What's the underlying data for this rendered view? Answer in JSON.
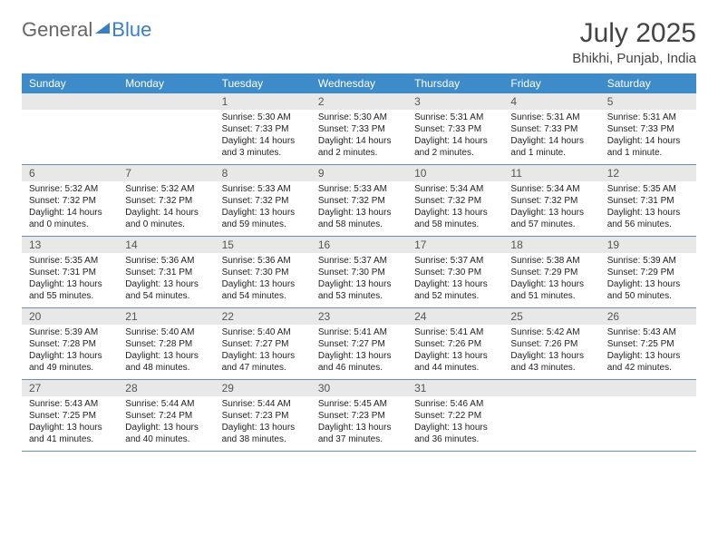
{
  "logo": {
    "general": "General",
    "blue": "Blue"
  },
  "title": "July 2025",
  "location": "Bhikhi, Punjab, India",
  "colors": {
    "header_bg": "#3d8bc9",
    "header_text": "#ffffff",
    "daynum_bg": "#e8e8e8",
    "daynum_text": "#555555",
    "body_text": "#222222",
    "rule": "#6a8db0",
    "logo_blue": "#3a7fc4"
  },
  "weekdays": [
    "Sunday",
    "Monday",
    "Tuesday",
    "Wednesday",
    "Thursday",
    "Friday",
    "Saturday"
  ],
  "weeks": [
    [
      null,
      null,
      {
        "n": "1",
        "sr": "5:30 AM",
        "ss": "7:33 PM",
        "dl": "14 hours and 3 minutes."
      },
      {
        "n": "2",
        "sr": "5:30 AM",
        "ss": "7:33 PM",
        "dl": "14 hours and 2 minutes."
      },
      {
        "n": "3",
        "sr": "5:31 AM",
        "ss": "7:33 PM",
        "dl": "14 hours and 2 minutes."
      },
      {
        "n": "4",
        "sr": "5:31 AM",
        "ss": "7:33 PM",
        "dl": "14 hours and 1 minute."
      },
      {
        "n": "5",
        "sr": "5:31 AM",
        "ss": "7:33 PM",
        "dl": "14 hours and 1 minute."
      }
    ],
    [
      {
        "n": "6",
        "sr": "5:32 AM",
        "ss": "7:32 PM",
        "dl": "14 hours and 0 minutes."
      },
      {
        "n": "7",
        "sr": "5:32 AM",
        "ss": "7:32 PM",
        "dl": "14 hours and 0 minutes."
      },
      {
        "n": "8",
        "sr": "5:33 AM",
        "ss": "7:32 PM",
        "dl": "13 hours and 59 minutes."
      },
      {
        "n": "9",
        "sr": "5:33 AM",
        "ss": "7:32 PM",
        "dl": "13 hours and 58 minutes."
      },
      {
        "n": "10",
        "sr": "5:34 AM",
        "ss": "7:32 PM",
        "dl": "13 hours and 58 minutes."
      },
      {
        "n": "11",
        "sr": "5:34 AM",
        "ss": "7:32 PM",
        "dl": "13 hours and 57 minutes."
      },
      {
        "n": "12",
        "sr": "5:35 AM",
        "ss": "7:31 PM",
        "dl": "13 hours and 56 minutes."
      }
    ],
    [
      {
        "n": "13",
        "sr": "5:35 AM",
        "ss": "7:31 PM",
        "dl": "13 hours and 55 minutes."
      },
      {
        "n": "14",
        "sr": "5:36 AM",
        "ss": "7:31 PM",
        "dl": "13 hours and 54 minutes."
      },
      {
        "n": "15",
        "sr": "5:36 AM",
        "ss": "7:30 PM",
        "dl": "13 hours and 54 minutes."
      },
      {
        "n": "16",
        "sr": "5:37 AM",
        "ss": "7:30 PM",
        "dl": "13 hours and 53 minutes."
      },
      {
        "n": "17",
        "sr": "5:37 AM",
        "ss": "7:30 PM",
        "dl": "13 hours and 52 minutes."
      },
      {
        "n": "18",
        "sr": "5:38 AM",
        "ss": "7:29 PM",
        "dl": "13 hours and 51 minutes."
      },
      {
        "n": "19",
        "sr": "5:39 AM",
        "ss": "7:29 PM",
        "dl": "13 hours and 50 minutes."
      }
    ],
    [
      {
        "n": "20",
        "sr": "5:39 AM",
        "ss": "7:28 PM",
        "dl": "13 hours and 49 minutes."
      },
      {
        "n": "21",
        "sr": "5:40 AM",
        "ss": "7:28 PM",
        "dl": "13 hours and 48 minutes."
      },
      {
        "n": "22",
        "sr": "5:40 AM",
        "ss": "7:27 PM",
        "dl": "13 hours and 47 minutes."
      },
      {
        "n": "23",
        "sr": "5:41 AM",
        "ss": "7:27 PM",
        "dl": "13 hours and 46 minutes."
      },
      {
        "n": "24",
        "sr": "5:41 AM",
        "ss": "7:26 PM",
        "dl": "13 hours and 44 minutes."
      },
      {
        "n": "25",
        "sr": "5:42 AM",
        "ss": "7:26 PM",
        "dl": "13 hours and 43 minutes."
      },
      {
        "n": "26",
        "sr": "5:43 AM",
        "ss": "7:25 PM",
        "dl": "13 hours and 42 minutes."
      }
    ],
    [
      {
        "n": "27",
        "sr": "5:43 AM",
        "ss": "7:25 PM",
        "dl": "13 hours and 41 minutes."
      },
      {
        "n": "28",
        "sr": "5:44 AM",
        "ss": "7:24 PM",
        "dl": "13 hours and 40 minutes."
      },
      {
        "n": "29",
        "sr": "5:44 AM",
        "ss": "7:23 PM",
        "dl": "13 hours and 38 minutes."
      },
      {
        "n": "30",
        "sr": "5:45 AM",
        "ss": "7:23 PM",
        "dl": "13 hours and 37 minutes."
      },
      {
        "n": "31",
        "sr": "5:46 AM",
        "ss": "7:22 PM",
        "dl": "13 hours and 36 minutes."
      },
      null,
      null
    ]
  ],
  "labels": {
    "sunrise": "Sunrise:",
    "sunset": "Sunset:",
    "daylight": "Daylight:"
  }
}
